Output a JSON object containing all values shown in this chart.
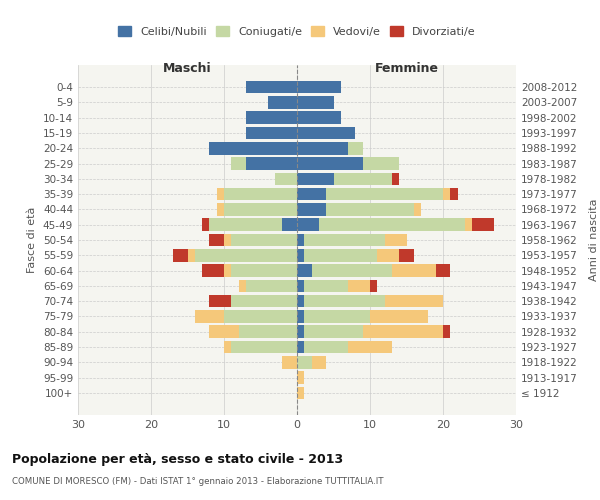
{
  "age_groups": [
    "0-4",
    "5-9",
    "10-14",
    "15-19",
    "20-24",
    "25-29",
    "30-34",
    "35-39",
    "40-44",
    "45-49",
    "50-54",
    "55-59",
    "60-64",
    "65-69",
    "70-74",
    "75-79",
    "80-84",
    "85-89",
    "90-94",
    "95-99",
    "100+"
  ],
  "birth_years": [
    "2008-2012",
    "2003-2007",
    "1998-2002",
    "1993-1997",
    "1988-1992",
    "1983-1987",
    "1978-1982",
    "1973-1977",
    "1968-1972",
    "1963-1967",
    "1958-1962",
    "1953-1957",
    "1948-1952",
    "1943-1947",
    "1938-1942",
    "1933-1937",
    "1928-1932",
    "1923-1927",
    "1918-1922",
    "1913-1917",
    "≤ 1912"
  ],
  "male_celibi": [
    7,
    4,
    7,
    7,
    12,
    7,
    0,
    0,
    0,
    2,
    0,
    0,
    0,
    0,
    0,
    0,
    0,
    0,
    0,
    0,
    0
  ],
  "male_coniugati": [
    0,
    0,
    0,
    0,
    0,
    2,
    3,
    10,
    10,
    10,
    9,
    14,
    9,
    7,
    9,
    10,
    8,
    9,
    0,
    0,
    0
  ],
  "male_vedovi": [
    0,
    0,
    0,
    0,
    0,
    0,
    0,
    1,
    1,
    0,
    1,
    1,
    1,
    1,
    0,
    4,
    4,
    1,
    2,
    0,
    0
  ],
  "male_divorziati": [
    0,
    0,
    0,
    0,
    0,
    0,
    0,
    0,
    0,
    1,
    2,
    2,
    3,
    0,
    3,
    0,
    0,
    0,
    0,
    0,
    0
  ],
  "female_celibi": [
    6,
    5,
    6,
    8,
    7,
    9,
    5,
    4,
    4,
    3,
    1,
    1,
    2,
    1,
    1,
    1,
    1,
    1,
    0,
    0,
    0
  ],
  "female_coniugati": [
    0,
    0,
    0,
    0,
    2,
    5,
    8,
    16,
    12,
    20,
    11,
    10,
    11,
    6,
    11,
    9,
    8,
    6,
    2,
    0,
    0
  ],
  "female_vedovi": [
    0,
    0,
    0,
    0,
    0,
    0,
    0,
    1,
    1,
    1,
    3,
    3,
    6,
    3,
    8,
    8,
    11,
    6,
    2,
    1,
    1
  ],
  "female_divorziati": [
    0,
    0,
    0,
    0,
    0,
    0,
    1,
    1,
    0,
    3,
    0,
    2,
    2,
    1,
    0,
    0,
    1,
    0,
    0,
    0,
    0
  ],
  "color_celibi": "#4472a4",
  "color_coniugati": "#c5d8a4",
  "color_vedovi": "#f5c87a",
  "color_divorziati": "#c0392b",
  "xlim": 30,
  "title": "Popolazione per età, sesso e stato civile - 2013",
  "subtitle": "COMUNE DI MORESCO (FM) - Dati ISTAT 1° gennaio 2013 - Elaborazione TUTTITALIA.IT",
  "ylabel_left": "Fasce di età",
  "ylabel_right": "Anni di nascita",
  "xlabel_maschi": "Maschi",
  "xlabel_femmine": "Femmine"
}
